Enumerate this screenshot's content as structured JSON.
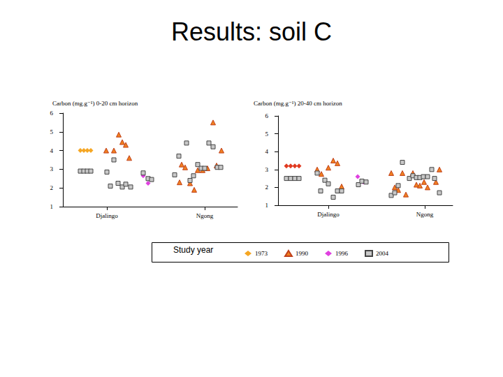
{
  "title": "Results: soil C",
  "legend_title": "Study year",
  "legend": "bottom",
  "chart_data": [
    {
      "type": "scatter",
      "title": "Carbon (mg.g⁻¹) 0-20 cm horizon",
      "xlim": [
        0,
        250
      ],
      "xticks": [
        {
          "value": 63,
          "label": "Djalingo"
        },
        {
          "value": 203,
          "label": "Ngong"
        }
      ],
      "ylim": [
        1,
        6
      ],
      "yticks": [
        1,
        2,
        3,
        4,
        5,
        6
      ],
      "grid": false,
      "series": [
        {
          "name": "1973",
          "color": "#f5a623",
          "marker": "diamond",
          "x": [
            25,
            30,
            35,
            40
          ],
          "values": [
            4.0,
            4.0,
            4.0,
            4.0
          ]
        },
        {
          "name": "1990",
          "color": "#f08020",
          "marker": "triangle",
          "x": [
            62,
            73,
            80,
            85,
            90,
            95,
            170,
            175,
            167,
            182,
            188,
            193,
            200,
            207,
            215,
            220,
            227
          ],
          "values": [
            4.0,
            4.0,
            4.85,
            4.45,
            4.3,
            3.6,
            3.25,
            3.1,
            2.3,
            2.25,
            1.9,
            2.95,
            2.95,
            3.05,
            5.5,
            3.2,
            4.0
          ]
        },
        {
          "name": "1996",
          "color": "#e040e0",
          "marker": "diamond",
          "x": [
            115,
            122
          ],
          "values": [
            2.65,
            2.25
          ]
        },
        {
          "name": "2004",
          "color": "#c8c8c8",
          "marker": "square",
          "x": [
            25,
            30,
            35,
            40,
            63,
            73,
            68,
            79,
            85,
            90,
            97,
            115,
            122,
            127,
            160,
            166,
            177,
            182,
            187,
            193,
            198,
            203,
            209,
            215,
            221,
            226
          ],
          "values": [
            2.9,
            2.9,
            2.9,
            2.9,
            2.85,
            3.5,
            2.1,
            2.25,
            2.05,
            2.2,
            2.05,
            2.8,
            2.5,
            2.45,
            2.7,
            3.7,
            4.4,
            2.4,
            2.65,
            3.25,
            3.05,
            3.05,
            4.4,
            4.2,
            3.1,
            3.1
          ]
        }
      ]
    },
    {
      "type": "scatter",
      "title": "Carbon (mg.g⁻¹) 20-40 cm horizon",
      "xlim": [
        0,
        250
      ],
      "xticks": [
        {
          "value": 72,
          "label": "Djalingo"
        },
        {
          "value": 210,
          "label": "Ngong"
        }
      ],
      "ylim": [
        1,
        6
      ],
      "yticks": [
        1,
        2,
        3,
        4,
        5,
        6
      ],
      "grid": false,
      "series": [
        {
          "name": "1973",
          "color": "#e03a20",
          "marker": "diamond",
          "x": [
            12,
            18,
            24,
            30
          ],
          "values": [
            3.2,
            3.2,
            3.2,
            3.2
          ]
        },
        {
          "name": "1990",
          "color": "#f08020",
          "marker": "triangle",
          "x": [
            56,
            62,
            72,
            79,
            85,
            91,
            162,
            167,
            172,
            178,
            183,
            193,
            198,
            203,
            209,
            214,
            226,
            231
          ],
          "values": [
            3.0,
            2.75,
            3.1,
            3.5,
            3.35,
            2.05,
            2.8,
            2.0,
            1.85,
            2.8,
            1.6,
            2.8,
            2.15,
            2.1,
            2.3,
            2.0,
            2.3,
            3.0
          ]
        },
        {
          "name": "1996",
          "color": "#e040e0",
          "marker": "diamond",
          "x": [
            114,
            122
          ],
          "values": [
            2.6,
            2.3
          ]
        },
        {
          "name": "2004",
          "color": "#c8c8c8",
          "marker": "square",
          "x": [
            12,
            18,
            24,
            30,
            56,
            61,
            67,
            72,
            79,
            85,
            91,
            115,
            120,
            126,
            162,
            167,
            172,
            178,
            188,
            193,
            198,
            203,
            208,
            214,
            220,
            224,
            231
          ],
          "values": [
            2.5,
            2.5,
            2.5,
            2.5,
            2.8,
            1.8,
            2.4,
            2.2,
            1.45,
            1.8,
            1.8,
            2.15,
            2.35,
            2.3,
            1.55,
            1.7,
            2.1,
            3.4,
            2.5,
            2.65,
            2.55,
            2.55,
            2.6,
            2.6,
            3.0,
            2.5,
            1.7
          ]
        }
      ]
    }
  ]
}
